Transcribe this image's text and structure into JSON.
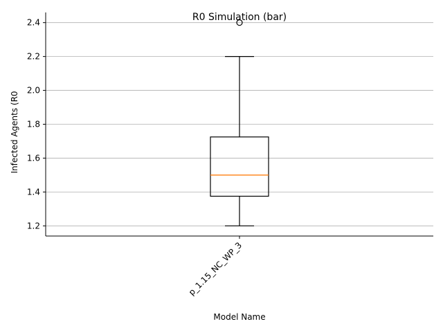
{
  "chart_data": {
    "type": "box",
    "title": "R0 Simulation (bar)",
    "xlabel": "Model Name",
    "ylabel": "Infected Agents (R0",
    "categories": [
      "p_1.15_NC_WP_3"
    ],
    "boxes": [
      {
        "name": "p_1.15_NC_WP_3",
        "whisker_low": 1.2,
        "q1": 1.375,
        "median": 1.5,
        "q3": 1.725,
        "whisker_high": 2.2,
        "outliers": [
          2.4
        ]
      }
    ],
    "ylim": [
      1.14,
      2.46
    ],
    "yticks": [
      "1.2",
      "1.4",
      "1.6",
      "1.8",
      "2.0",
      "2.2",
      "2.4"
    ],
    "grid": "horizontal",
    "colors": {
      "box": "#000000",
      "median": "#ff7f0e",
      "grid": "#b0b0b0"
    }
  }
}
